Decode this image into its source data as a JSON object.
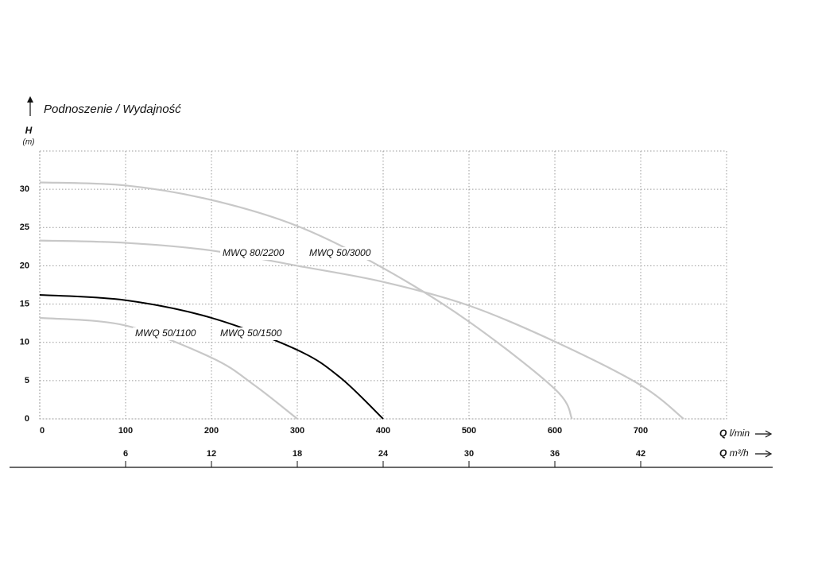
{
  "chart_data": {
    "type": "line",
    "title": "Podnoszenie / Wydajność",
    "y_axis_label": {
      "symbol": "H",
      "unit": "(m)"
    },
    "x_axis_label": {
      "symbol": "Q",
      "unit": "l/min"
    },
    "x2_axis_label": {
      "symbol": "Q",
      "unit": "m³/h"
    },
    "xlim": [
      0,
      800
    ],
    "xticks": [
      0,
      100,
      200,
      300,
      400,
      500,
      600,
      700
    ],
    "x2lim": [
      0,
      48
    ],
    "x2ticks": [
      6,
      12,
      18,
      24,
      30,
      36,
      42
    ],
    "ylim": [
      0,
      35
    ],
    "yticks": [
      0,
      5,
      10,
      15,
      20,
      25,
      30
    ],
    "grid": true,
    "series": [
      {
        "name": "MWQ 50/1100",
        "color": "#c8c8c8",
        "x": [
          0,
          100,
          200,
          250,
          300
        ],
        "values": [
          13.2,
          12.2,
          8,
          4.4,
          0
        ]
      },
      {
        "name": "MWQ 50/1500",
        "color": "#000000",
        "x": [
          0,
          100,
          200,
          300,
          350,
          400
        ],
        "values": [
          16.2,
          15.5,
          13.2,
          9,
          5.4,
          0
        ]
      },
      {
        "name": "MWQ 80/2200",
        "color": "#c8c8c8",
        "x": [
          0,
          100,
          200,
          300,
          400,
          500,
          600,
          700,
          750
        ],
        "values": [
          23.3,
          23,
          22,
          20,
          17.9,
          14.8,
          10.1,
          4.4,
          0
        ]
      },
      {
        "name": "MWQ 50/3000",
        "color": "#c8c8c8",
        "x": [
          0,
          100,
          200,
          300,
          400,
          500,
          600,
          620
        ],
        "values": [
          30.9,
          30.5,
          28.6,
          25.2,
          19.7,
          12.7,
          3.9,
          0
        ]
      }
    ]
  }
}
